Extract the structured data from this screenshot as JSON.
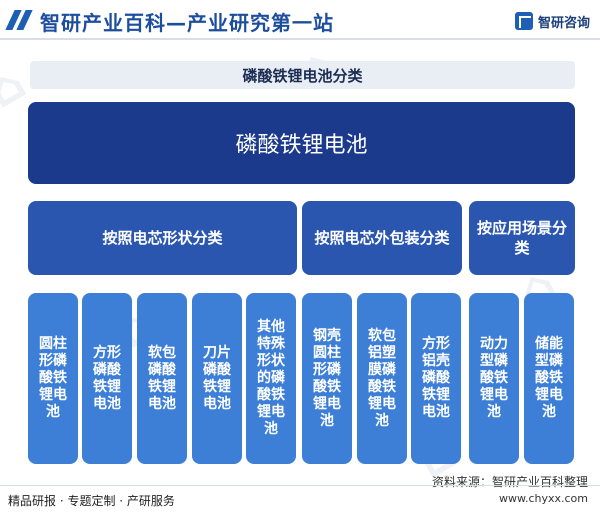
{
  "header": {
    "title": "智研产业百科—产业研究第一站",
    "brand": "智研咨询"
  },
  "diagram": {
    "subtitle": "磷酸铁锂电池分类",
    "root": "磷酸铁锂电池",
    "categories": [
      {
        "label": "按照电芯形状分类"
      },
      {
        "label": "按照电芯外包装分类"
      },
      {
        "label": "按应用场景分类"
      }
    ],
    "leaves": [
      "圆柱形磷酸铁锂电池",
      "方形磷酸铁锂电池",
      "软包磷酸铁锂电池",
      "刀片磷酸铁锂电池",
      "其他特殊形状的磷酸铁锂电池",
      "钢壳圆柱形磷酸铁锂电池",
      "软包铝塑膜磷酸铁锂电池",
      "方形铝壳磷酸铁锂电池",
      "动力型磷酸铁锂电池",
      "储能型磷酸铁锂电池"
    ]
  },
  "footer": {
    "source": "资料来源：智研产业百科整理",
    "tagline": "精品研报 · 专题定制 · 产研服务",
    "url": "www.chyxx.com"
  },
  "colors": {
    "root": "#1c3a8c",
    "category": "#2a56b0",
    "leaf": "#3d7fd6"
  }
}
